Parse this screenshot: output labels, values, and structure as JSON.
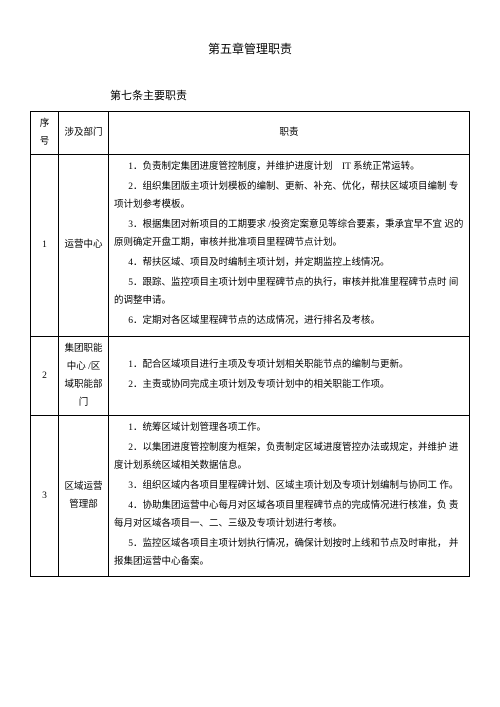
{
  "chapter_title": "第五章管理职责",
  "article_title": "第七条主要职责",
  "headers": {
    "seq": "序号",
    "dept": "涉及部门",
    "duty": "职责"
  },
  "rows": [
    {
      "seq": "1",
      "dept": "运营中心",
      "duties": [
        "1．负责制定集团进度管控制度，并维护进度计划　IT 系统正常运转。",
        "2．组织集团版主项计划模板的编制、更新、补充、优化，帮扶区域项目编制 专项计划参考模板。",
        "3．根据集团对新项目的工期要求 /投资定案意见等综合要素，秉承宜早不宜 迟的原则确定开盘工期，审核并批准项目里程碑节点计划。",
        "4．帮扶区域、项目及时编制主项计划，并定期监控上线情况。",
        "5．跟踪、监控项目主项计划中里程碑节点的执行，审核并批准里程碑节点时 间的调整申请。",
        "6．定期对各区域里程碑节点的达成情况，进行排名及考核。"
      ]
    },
    {
      "seq": "2",
      "dept": "集团职能中心 /区域职能部门",
      "duties": [
        "1．配合区域项目进行主项及专项计划相关职能节点的编制与更新。",
        "2．主责或协同完成主项计划及专项计划中的相关职能工作项。"
      ]
    },
    {
      "seq": "3",
      "dept": "区域运营管理部",
      "duties": [
        "1．统筹区域计划管理各项工作。",
        "2．以集团进度管控制度为框架，负责制定区域进度管控办法或规定，并维护 进度计划系统区域相关数据信息。",
        "3．组织区域内各项目里程碑计划、区域主项计划及专项计划编制与协同工 作。",
        "4．协助集团运营中心每月对区域各项目里程碑节点的完成情况进行核准，负 责每月对区域各项目一、二、三级及专项计划进行考核。",
        "5．监控区域各项目主项计划执行情况，确保计划按时上线和节点及时审批， 并报集团运营中心备案。"
      ]
    }
  ]
}
